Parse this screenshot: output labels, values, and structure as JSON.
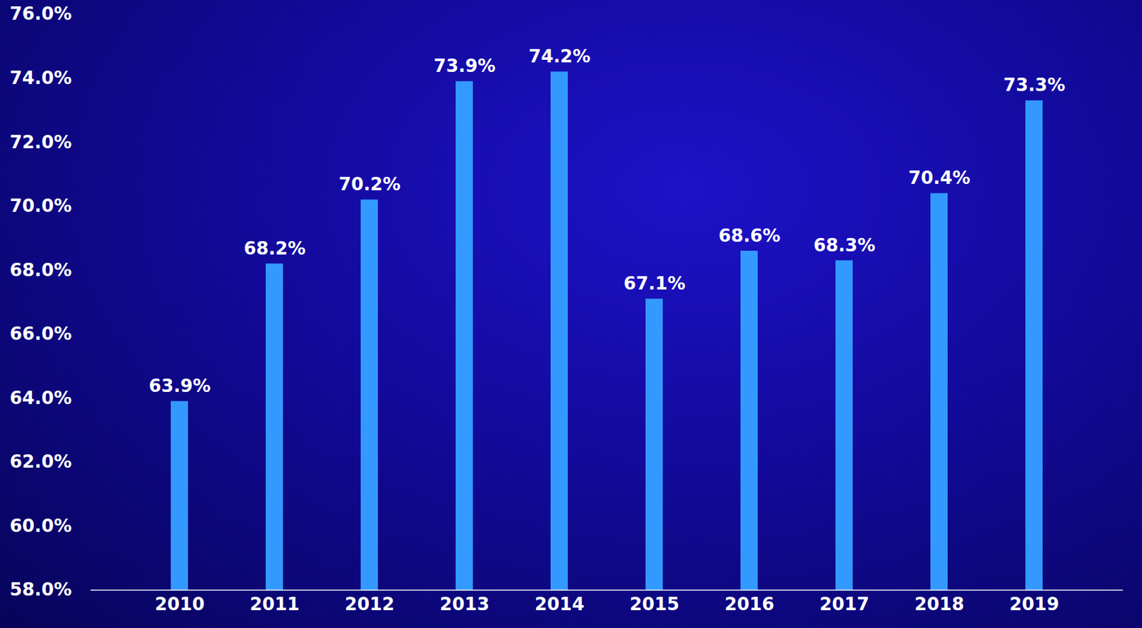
{
  "chart_data": {
    "type": "bar",
    "categories": [
      "2010",
      "2011",
      "2012",
      "2013",
      "2014",
      "2015",
      "2016",
      "2017",
      "2018",
      "2019"
    ],
    "values": [
      63.9,
      68.2,
      70.2,
      73.9,
      74.2,
      67.1,
      68.6,
      68.3,
      70.4,
      73.3
    ],
    "value_labels": [
      "63.9%",
      "68.2%",
      "70.2%",
      "73.9%",
      "74.2%",
      "67.1%",
      "68.6%",
      "68.3%",
      "70.4%",
      "73.3%"
    ],
    "color": "#3399ff",
    "ylim": [
      58,
      76
    ],
    "yticks": [
      {
        "value": 58,
        "label": "58.0%"
      },
      {
        "value": 60,
        "label": "60.0%"
      },
      {
        "value": 62,
        "label": "62.0%"
      },
      {
        "value": 64,
        "label": "64.0%"
      },
      {
        "value": 66,
        "label": "66.0%"
      },
      {
        "value": 68,
        "label": "68.0%"
      },
      {
        "value": 70,
        "label": "70.0%"
      },
      {
        "value": 72,
        "label": "72.0%"
      },
      {
        "value": 74,
        "label": "74.0%"
      },
      {
        "value": 76,
        "label": "76.0%"
      }
    ],
    "grid": false,
    "data_labels": true
  }
}
